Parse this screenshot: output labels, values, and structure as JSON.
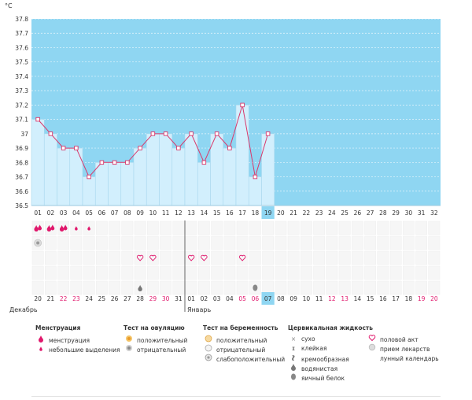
{
  "chart_data": {
    "type": "line",
    "unit": "°C",
    "ylim": [
      36.5,
      37.8
    ],
    "yticks": [
      "36.5",
      "36.6",
      "36.7",
      "36.8",
      "36.9",
      "37",
      "37.1",
      "37.2",
      "37.3",
      "37.4",
      "37.5",
      "37.6",
      "37.7",
      "37.8"
    ],
    "cycle_days": [
      "01",
      "02",
      "03",
      "04",
      "05",
      "06",
      "07",
      "08",
      "09",
      "10",
      "11",
      "12",
      "13",
      "14",
      "15",
      "16",
      "17",
      "18",
      "19",
      "20",
      "21",
      "22",
      "23",
      "24",
      "25",
      "26",
      "27",
      "28",
      "29",
      "30",
      "31",
      "32"
    ],
    "temperatures": [
      37.1,
      37.0,
      36.9,
      36.9,
      36.7,
      36.8,
      36.8,
      36.8,
      36.9,
      37.0,
      37.0,
      36.9,
      37.0,
      36.8,
      37.0,
      36.9,
      37.2,
      36.7,
      37.0
    ],
    "current_day_index": 18,
    "dates": [
      "20",
      "21",
      "22",
      "23",
      "24",
      "25",
      "26",
      "27",
      "28",
      "29",
      "30",
      "31",
      "01",
      "02",
      "03",
      "04",
      "05",
      "06",
      "07",
      "08",
      "09",
      "10",
      "11",
      "12",
      "13",
      "14",
      "15",
      "16",
      "17",
      "18",
      "19",
      "20"
    ],
    "weekend_indices": [
      2,
      3,
      9,
      10,
      16,
      17,
      23,
      24,
      30,
      31
    ],
    "months": [
      {
        "label": "Декабрь",
        "index": 0
      },
      {
        "label": "Январь",
        "index": 12
      }
    ],
    "marks": {
      "menstruation": [
        0,
        1,
        2
      ],
      "light_discharge": [
        3,
        4
      ],
      "ovulation_negative": [
        0
      ],
      "intercourse": [
        8,
        9,
        12,
        13,
        16
      ],
      "fluid_watery": [
        8
      ],
      "fluid_eggwhite": [
        17
      ]
    },
    "colors": {
      "fill": "#8fd6f2",
      "bar": "#d2effd",
      "bar_edge": "#a8d8ee",
      "line": "#d9386b",
      "accent": "#e83c78",
      "current": "#8fd6f2",
      "weekend": "#e0186c"
    }
  },
  "legend": {
    "columns": [
      {
        "title": "Менструация",
        "items": [
          {
            "icon": "menstruation-icon",
            "label": "менструация"
          },
          {
            "icon": "light-discharge-icon",
            "label": "небольшие выделения"
          }
        ]
      },
      {
        "title": "Тест на овуляцию",
        "items": [
          {
            "icon": "ovulation-positive-icon",
            "label": "положительный"
          },
          {
            "icon": "ovulation-negative-icon",
            "label": "отрицательный"
          }
        ]
      },
      {
        "title": "Тест на беременность",
        "items": [
          {
            "icon": "pregnancy-positive-icon",
            "label": "положительный"
          },
          {
            "icon": "pregnancy-negative-icon",
            "label": "отрицательный"
          },
          {
            "icon": "pregnancy-weak-icon",
            "label": "слабоположительный"
          }
        ]
      },
      {
        "title": "Цервикальная жидкость",
        "items": [
          {
            "icon": "dry-icon",
            "label": "сухо"
          },
          {
            "icon": "sticky-icon",
            "label": "клейкая"
          },
          {
            "icon": "creamy-icon",
            "label": "кремообразная"
          },
          {
            "icon": "watery-icon",
            "label": "водянистая"
          },
          {
            "icon": "egg-white-icon",
            "label": "яичный белок"
          }
        ]
      },
      {
        "title": "",
        "items": [
          {
            "icon": "intercourse-icon",
            "label": "половой акт"
          },
          {
            "icon": "medication-icon",
            "label": "прием лекарств"
          },
          {
            "icon": "lunar-calendar-icon",
            "label": "лунный календарь"
          }
        ]
      }
    ]
  }
}
